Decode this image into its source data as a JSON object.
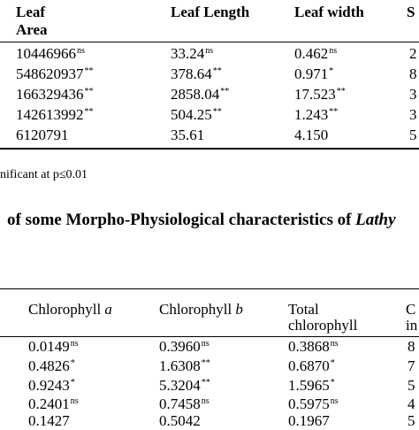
{
  "table1": {
    "headers": {
      "leaf_area_line1": "Leaf",
      "leaf_area_line2": "Area",
      "leaf_length": "Leaf Length",
      "leaf_width": "Leaf width",
      "partial": "S"
    },
    "rows": [
      {
        "leaf_area": "10446966",
        "leaf_area_sig": "ns",
        "leaf_length": "33.24",
        "leaf_length_sig": "ns",
        "leaf_width": "0.462",
        "leaf_width_sig": "ns",
        "partial": "2"
      },
      {
        "leaf_area": "548620937",
        "leaf_area_sig": "**",
        "leaf_length": "378.64",
        "leaf_length_sig": "**",
        "leaf_width": "0.971",
        "leaf_width_sig": "*",
        "partial": "8"
      },
      {
        "leaf_area": "166329436",
        "leaf_area_sig": "**",
        "leaf_length": "2858.04",
        "leaf_length_sig": "**",
        "leaf_width": "17.523",
        "leaf_width_sig": "**",
        "partial": "3"
      },
      {
        "leaf_area": "142613992",
        "leaf_area_sig": "**",
        "leaf_length": "504.25",
        "leaf_length_sig": "**",
        "leaf_width": "1.243",
        "leaf_width_sig": "**",
        "partial": "3"
      },
      {
        "leaf_area": "6120791",
        "leaf_area_sig": "",
        "leaf_length": "35.61",
        "leaf_length_sig": "",
        "leaf_width": "4.150",
        "leaf_width_sig": "",
        "partial": "5"
      }
    ]
  },
  "footnote": "nificant at p≤0.01",
  "table2_title_main": "of some Morpho-Physiological characteristics of ",
  "table2_title_italic": "Lathy",
  "table2": {
    "headers": {
      "chl_a_text": "Chlorophyll ",
      "chl_a_italic": "a",
      "chl_b_text": "Chlorophyll ",
      "chl_b_italic": "b",
      "total_line1": "Total",
      "total_line2": "chlorophyll",
      "partial_line1": "C",
      "partial_line2": "in"
    },
    "rows": [
      {
        "chl_a": "0.0149",
        "chl_a_sig": "ns",
        "chl_b": "0.3960",
        "chl_b_sig": "ns",
        "total": "0.3868",
        "total_sig": "ns",
        "partial": "8"
      },
      {
        "chl_a": "0.4826",
        "chl_a_sig": "*",
        "chl_b": "1.6308",
        "chl_b_sig": "**",
        "total": "0.6870",
        "total_sig": "*",
        "partial": "7"
      },
      {
        "chl_a": "0.9243",
        "chl_a_sig": "*",
        "chl_b": "5.3204",
        "chl_b_sig": "**",
        "total": "1.5965",
        "total_sig": "*",
        "partial": "5"
      },
      {
        "chl_a": "0.2401",
        "chl_a_sig": "ns",
        "chl_b": "0.7458",
        "chl_b_sig": "ns",
        "total": "0.5975",
        "total_sig": "ns",
        "partial": "4"
      },
      {
        "chl_a": "0.1427",
        "chl_a_sig": "",
        "chl_b": "0.5042",
        "chl_b_sig": "",
        "total": "0.1967",
        "total_sig": "",
        "partial": "5"
      }
    ]
  }
}
